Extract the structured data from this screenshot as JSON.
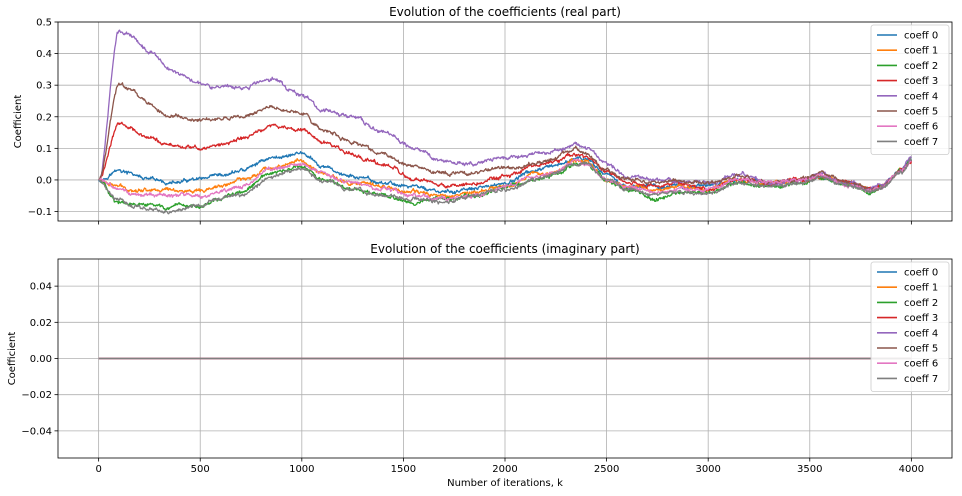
{
  "chart_data": [
    {
      "type": "line",
      "title": "Evolution of the coefficients (real part)",
      "xlabel": "",
      "ylabel": "Coefficient",
      "xlim": [
        -200,
        4200
      ],
      "ylim": [
        -0.13,
        0.5
      ],
      "xticks": [
        0,
        500,
        1000,
        1500,
        2000,
        2500,
        3000,
        3500,
        4000
      ],
      "xtick_labels_visible": false,
      "yticks": [
        -0.1,
        0.0,
        0.1,
        0.2,
        0.3,
        0.4,
        0.5
      ],
      "ytick_labels": [
        "−0.1",
        "0.0",
        "0.1",
        "0.2",
        "0.3",
        "0.4",
        "0.5"
      ],
      "grid": true,
      "legend": "top-right",
      "x": [
        0,
        100,
        150,
        250,
        350,
        500,
        600,
        700,
        850,
        1000,
        1100,
        1250,
        1400,
        1550,
        1700,
        1850,
        2000,
        2150,
        2250,
        2350,
        2400,
        2500,
        2600,
        2750,
        2850,
        3000,
        3150,
        3300,
        3450,
        3550,
        3700,
        3800,
        3850,
        3950,
        4000
      ],
      "series": [
        {
          "name": "coeff 0",
          "color": "#1f77b4",
          "values": [
            0.0,
            0.03,
            0.02,
            0.0,
            -0.01,
            0.0,
            0.01,
            0.03,
            0.07,
            0.085,
            0.04,
            0.01,
            -0.01,
            -0.02,
            -0.04,
            -0.03,
            -0.01,
            0.03,
            0.04,
            0.07,
            0.06,
            0.02,
            -0.02,
            -0.02,
            -0.02,
            -0.02,
            0.0,
            -0.01,
            0.0,
            0.01,
            -0.01,
            -0.03,
            -0.02,
            0.03,
            0.06
          ]
        },
        {
          "name": "coeff 1",
          "color": "#ff7f0e",
          "values": [
            0.0,
            -0.02,
            -0.03,
            -0.03,
            -0.03,
            -0.04,
            -0.02,
            0.0,
            0.04,
            0.06,
            0.02,
            -0.01,
            -0.02,
            -0.04,
            -0.05,
            -0.04,
            -0.02,
            0.02,
            0.03,
            0.06,
            0.06,
            0.0,
            -0.02,
            -0.03,
            -0.02,
            -0.03,
            0.0,
            -0.01,
            0.0,
            0.01,
            -0.01,
            -0.03,
            -0.02,
            0.03,
            0.06
          ]
        },
        {
          "name": "coeff 2",
          "color": "#2ca02c",
          "values": [
            0.0,
            -0.07,
            -0.08,
            -0.08,
            -0.09,
            -0.08,
            -0.06,
            -0.04,
            0.02,
            0.04,
            0.0,
            -0.03,
            -0.05,
            -0.07,
            -0.06,
            -0.05,
            -0.02,
            0.0,
            0.02,
            0.05,
            0.05,
            0.0,
            -0.03,
            -0.06,
            -0.04,
            -0.04,
            -0.01,
            -0.02,
            -0.01,
            0.01,
            -0.02,
            -0.04,
            -0.02,
            0.03,
            0.06
          ]
        },
        {
          "name": "coeff 3",
          "color": "#d62728",
          "values": [
            0.0,
            0.18,
            0.17,
            0.13,
            0.11,
            0.1,
            0.11,
            0.13,
            0.17,
            0.16,
            0.12,
            0.08,
            0.05,
            0.0,
            -0.02,
            -0.01,
            0.01,
            0.04,
            0.06,
            0.08,
            0.07,
            0.03,
            -0.01,
            -0.02,
            -0.01,
            -0.03,
            0.0,
            -0.01,
            0.0,
            0.01,
            -0.01,
            -0.03,
            -0.02,
            0.03,
            0.06
          ]
        },
        {
          "name": "coeff 4",
          "color": "#9467bd",
          "values": [
            0.0,
            0.47,
            0.46,
            0.41,
            0.35,
            0.31,
            0.29,
            0.29,
            0.32,
            0.27,
            0.22,
            0.2,
            0.15,
            0.1,
            0.06,
            0.05,
            0.07,
            0.08,
            0.09,
            0.12,
            0.1,
            0.05,
            0.01,
            0.0,
            0.0,
            -0.01,
            0.02,
            -0.01,
            0.0,
            0.02,
            -0.01,
            -0.03,
            -0.02,
            0.03,
            0.07
          ]
        },
        {
          "name": "coeff 5",
          "color": "#8c564b",
          "values": [
            0.0,
            0.3,
            0.29,
            0.24,
            0.2,
            0.19,
            0.19,
            0.2,
            0.23,
            0.21,
            0.16,
            0.12,
            0.08,
            0.04,
            0.02,
            0.02,
            0.04,
            0.05,
            0.07,
            0.1,
            0.08,
            0.03,
            0.0,
            -0.01,
            0.0,
            -0.01,
            0.01,
            -0.01,
            0.0,
            0.02,
            -0.01,
            -0.03,
            -0.02,
            0.03,
            0.06
          ]
        },
        {
          "name": "coeff 6",
          "color": "#e377c2",
          "values": [
            0.0,
            -0.03,
            -0.04,
            -0.05,
            -0.05,
            -0.05,
            -0.04,
            -0.02,
            0.03,
            0.05,
            0.02,
            -0.01,
            -0.03,
            -0.05,
            -0.06,
            -0.05,
            -0.02,
            0.01,
            0.03,
            0.06,
            0.05,
            0.0,
            -0.02,
            -0.04,
            -0.03,
            -0.03,
            0.0,
            -0.01,
            0.0,
            0.01,
            -0.02,
            -0.03,
            -0.02,
            0.03,
            0.06
          ]
        },
        {
          "name": "coeff 7",
          "color": "#7f7f7f",
          "values": [
            0.0,
            -0.06,
            -0.08,
            -0.09,
            -0.1,
            -0.08,
            -0.06,
            -0.05,
            0.01,
            0.04,
            0.0,
            -0.03,
            -0.05,
            -0.06,
            -0.07,
            -0.05,
            -0.03,
            0.0,
            0.02,
            0.05,
            0.05,
            0.0,
            -0.03,
            -0.05,
            -0.04,
            -0.04,
            -0.01,
            -0.02,
            -0.01,
            0.01,
            -0.02,
            -0.04,
            -0.02,
            0.02,
            0.06
          ]
        }
      ]
    },
    {
      "type": "line",
      "title": "Evolution of the coefficients (imaginary part)",
      "xlabel": "Number of iterations, k",
      "ylabel": "Coefficient",
      "xlim": [
        -200,
        4200
      ],
      "ylim": [
        -0.055,
        0.055
      ],
      "xticks": [
        0,
        500,
        1000,
        1500,
        2000,
        2500,
        3000,
        3500,
        4000
      ],
      "xtick_labels": [
        "0",
        "500",
        "1000",
        "1500",
        "2000",
        "2500",
        "3000",
        "3500",
        "4000"
      ],
      "yticks": [
        -0.04,
        -0.02,
        0.0,
        0.02,
        0.04
      ],
      "ytick_labels": [
        "−0.04",
        "−0.02",
        "0.00",
        "0.02",
        "0.04"
      ],
      "grid": true,
      "legend": "top-right",
      "x": [
        0,
        4000
      ],
      "series": [
        {
          "name": "coeff 0",
          "color": "#1f77b4",
          "values": [
            0,
            0
          ]
        },
        {
          "name": "coeff 1",
          "color": "#ff7f0e",
          "values": [
            0,
            0
          ]
        },
        {
          "name": "coeff 2",
          "color": "#2ca02c",
          "values": [
            0,
            0
          ]
        },
        {
          "name": "coeff 3",
          "color": "#d62728",
          "values": [
            0,
            0
          ]
        },
        {
          "name": "coeff 4",
          "color": "#9467bd",
          "values": [
            0,
            0
          ]
        },
        {
          "name": "coeff 5",
          "color": "#8c564b",
          "values": [
            0,
            0
          ]
        },
        {
          "name": "coeff 6",
          "color": "#e377c2",
          "values": [
            0,
            0
          ]
        },
        {
          "name": "coeff 7",
          "color": "#7f7f7f",
          "values": [
            0,
            0
          ]
        }
      ]
    }
  ]
}
